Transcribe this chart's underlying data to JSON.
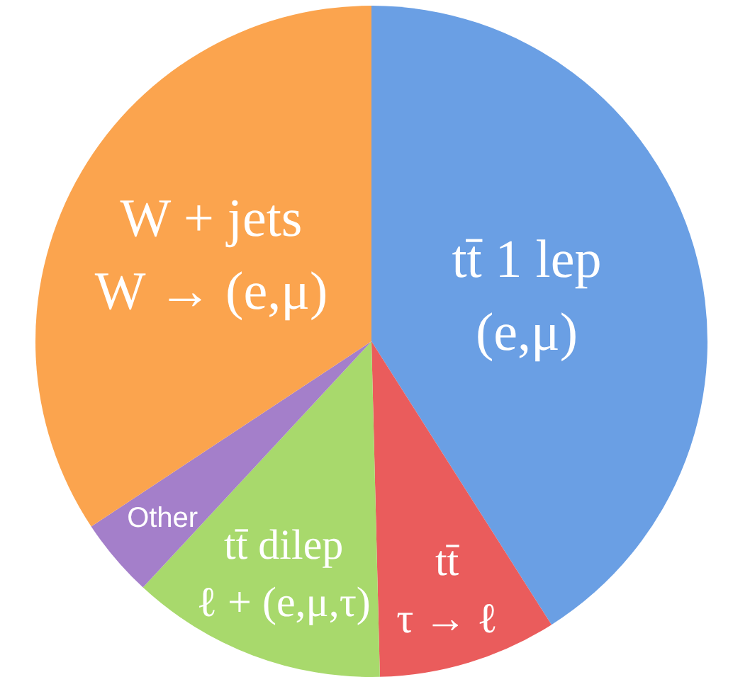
{
  "chart_data": {
    "type": "pie",
    "categories": [
      "tt̄ 1 lep\n(e,μ)",
      "tt̄\nτ → ℓ",
      "tt̄ dilep\nℓ + (e,μ,τ)",
      "Other",
      "W + jets\nW → (e,μ)"
    ],
    "values": [
      41,
      8.6,
      12.3,
      3.8,
      34.3
    ],
    "colors": [
      "#6a9fe4",
      "#ea5c5c",
      "#a8d96c",
      "#a47fca",
      "#fba44e"
    ]
  }
}
